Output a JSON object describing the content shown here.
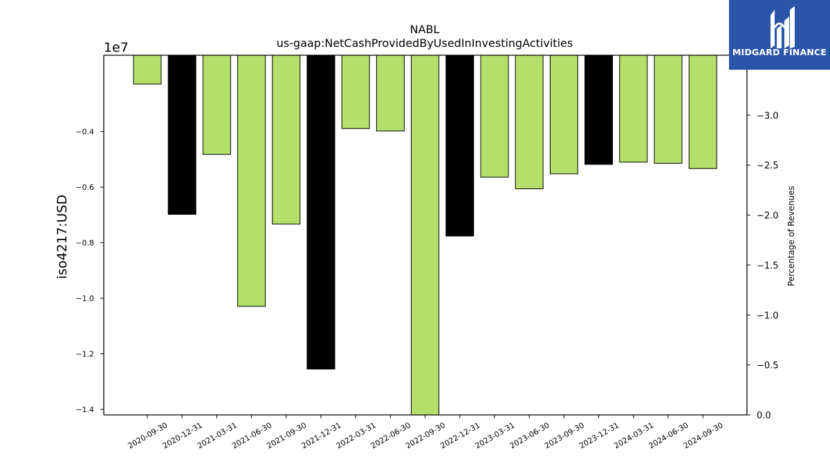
{
  "chart_data": {
    "type": "bar",
    "title": "NABL",
    "subtitle": "us-gaap:NetCashProvidedByUsedInInvestingActivities",
    "ylabel": "iso4217:USD",
    "y_offset_label": "1e7",
    "y2label": "Percentage of Revenues",
    "categories": [
      "2020-09-30",
      "2020-12-31",
      "2021-03-31",
      "2021-06-30",
      "2021-09-30",
      "2021-12-31",
      "2022-03-31",
      "2022-06-30",
      "2022-09-30",
      "2022-12-31",
      "2023-03-31",
      "2023-06-30",
      "2023-09-30",
      "2023-12-31",
      "2024-03-31",
      "2024-06-30",
      "2024-09-30"
    ],
    "values": [
      -2290000,
      -6980000,
      -4820000,
      -10290000,
      -7330000,
      -12550000,
      -3890000,
      -3980000,
      -14200000,
      -7760000,
      -5640000,
      -6060000,
      -5520000,
      -5180000,
      -5100000,
      -5140000,
      -5330000
    ],
    "bar_colors": [
      "#b5df6b",
      "#000000",
      "#b5df6b",
      "#b5df6b",
      "#b5df6b",
      "#000000",
      "#b5df6b",
      "#b5df6b",
      "#b5df6b",
      "#000000",
      "#b5df6b",
      "#b5df6b",
      "#b5df6b",
      "#000000",
      "#b5df6b",
      "#b5df6b",
      "#b5df6b"
    ],
    "ylim": [
      -14200000,
      -1250000
    ],
    "yticks": [
      -4000000,
      -6000000,
      -8000000,
      -10000000,
      -12000000,
      -14000000
    ],
    "ytick_labels": [
      "−0.4",
      "−0.6",
      "−0.8",
      "−1.0",
      "−1.2",
      "−1.4"
    ],
    "y2lim": [
      0.0,
      -3.6
    ],
    "y2ticks": [
      -3.0,
      -2.5,
      -2.0,
      -1.5,
      -1.0,
      -0.5,
      0.0
    ],
    "y2tick_labels": [
      "−3.0",
      "−2.5",
      "−2.0",
      "−1.5",
      "−1.0",
      "−0.5",
      "0.0"
    ],
    "grid": false
  },
  "logo": {
    "text": "MIDGARD FINANCE"
  }
}
